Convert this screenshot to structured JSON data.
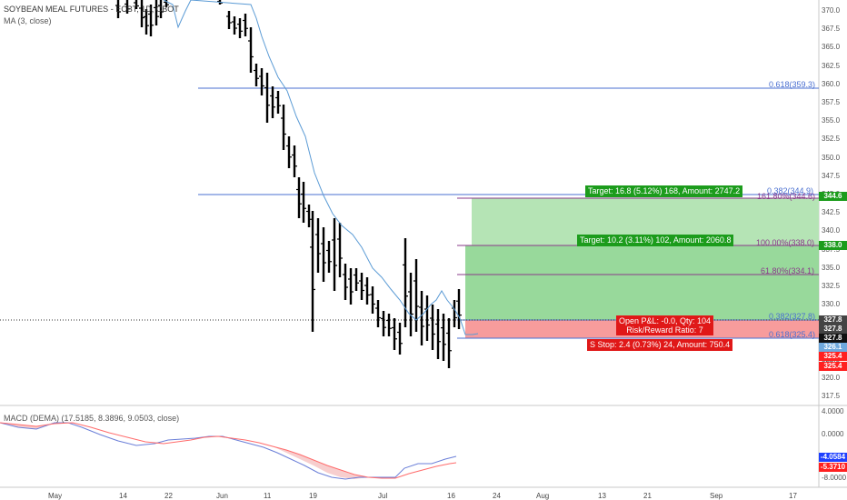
{
  "header": {
    "symbol": "SOYBEAN MEAL FUTURES - ECBT, 1D, CBOT",
    "indicator": "MA (3, close)"
  },
  "macd": {
    "label": "MACD (DEMA) (17.5185, 8.3896, 9.0503, close)",
    "axis": [
      "4.0000",
      "0.0000",
      "-4.0000",
      "-8.0000"
    ],
    "tags": [
      {
        "value": "-4.0584",
        "color": "#1e40ff"
      },
      {
        "value": "-5.3710",
        "color": "#ff2020"
      }
    ]
  },
  "price_axis": [
    "370.0",
    "367.5",
    "365.0",
    "362.5",
    "360.0",
    "357.5",
    "355.0",
    "352.5",
    "350.0",
    "347.5",
    "345.0",
    "342.5",
    "340.0",
    "337.5",
    "335.0",
    "332.5",
    "330.0",
    "327.5",
    "325.0",
    "322.5",
    "320.0",
    "317.5"
  ],
  "price_tags": [
    {
      "value": "344.6",
      "color": "#1c9c1c"
    },
    {
      "value": "338.0",
      "color": "#1c9c1c"
    },
    {
      "value": "327.8",
      "color": "#444444"
    },
    {
      "value": "327.8",
      "color": "#444444"
    },
    {
      "value": "327.8",
      "color": "#111111"
    },
    {
      "value": "326.1",
      "color": "#6fa8dc"
    },
    {
      "value": "325.4",
      "color": "#ff2020"
    },
    {
      "value": "325.4",
      "color": "#ff2020"
    }
  ],
  "x_axis": [
    "May",
    "14",
    "22",
    "Jun",
    "11",
    "19",
    "Jul",
    "16",
    "24",
    "Aug",
    "13",
    "21",
    "Sep",
    "17"
  ],
  "fib_labels": [
    {
      "text": "0.618(359.3)"
    },
    {
      "text": "0.382(344.9)"
    },
    {
      "text": "161.80%(344.6)"
    },
    {
      "text": "100.00%(338.0)"
    },
    {
      "text": "61.80%(334.1)"
    },
    {
      "text": "0.382(327.8)"
    },
    {
      "text": "0.618(325.4)"
    }
  ],
  "position": {
    "target_far": "Target: 16.8 (5.12%) 168, Amount: 2747.2",
    "target_near": "Target: 10.2 (3.11%) 102, Amount: 2060.8",
    "open_pnl": "Open P&L: -0.0, Qty: 104",
    "risk_reward": "Risk/Reward Ratio: 7",
    "stop": "Stop: 2.4 (0.73%) 24, Amount: 750.4",
    "stop_marker": "S"
  },
  "colors": {
    "profit_zone": "#86d28a",
    "profit_zone_light": "#c9ecc8",
    "loss_zone": "#f79c9c",
    "ma_line": "#5b9bd5",
    "fib_blue": "#4a6fd0",
    "fib_purple": "#8a3a8a"
  }
}
